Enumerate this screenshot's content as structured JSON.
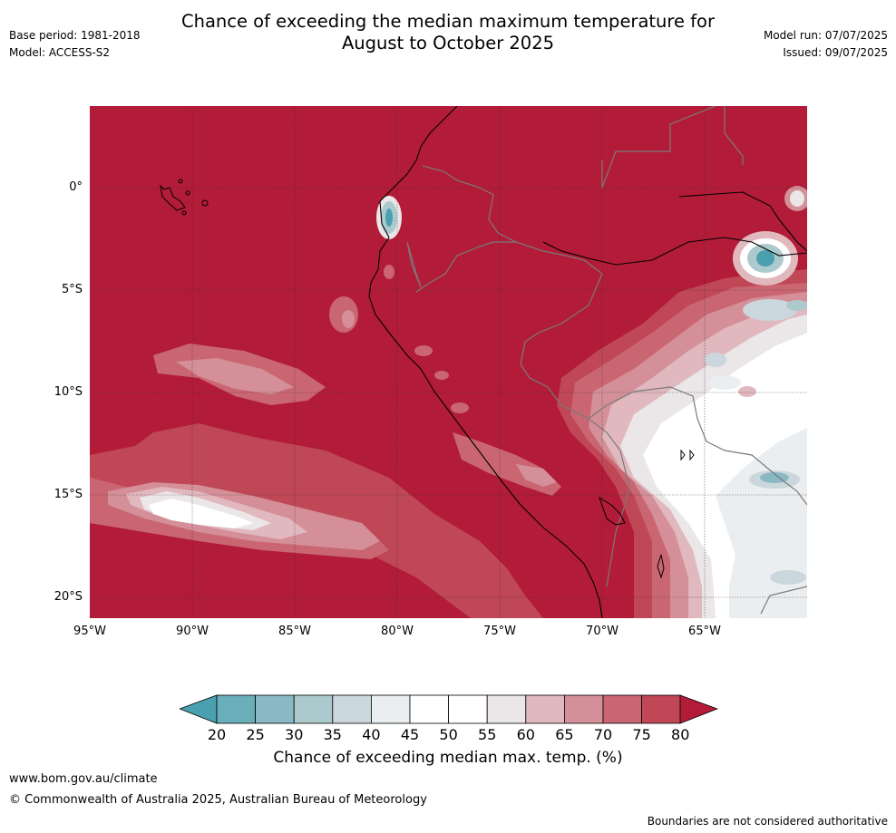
{
  "header": {
    "title_line1": "Chance of exceeding the median maximum temperature for",
    "title_line2": "August to October 2025",
    "base_period": "Base period: 1981-2018",
    "model": "Model: ACCESS-S2",
    "model_run": "Model run: 07/07/2025",
    "issued": "Issued: 09/07/2025"
  },
  "map": {
    "lat_labels": [
      "0°",
      "5°S",
      "10°S",
      "15°S",
      "20°S"
    ],
    "lon_labels": [
      "95°W",
      "90°W",
      "85°W",
      "80°W",
      "75°W",
      "70°W",
      "65°W"
    ],
    "background_category": "80+",
    "land_outline_color": "#000000",
    "border_color": "#7a7a7a"
  },
  "colorbar": {
    "title": "Chance of exceeding median max. temp. (%)",
    "ticks": [
      "20",
      "25",
      "30",
      "35",
      "40",
      "45",
      "50",
      "55",
      "60",
      "65",
      "70",
      "75",
      "80"
    ],
    "colors": [
      "#4aa0ae",
      "#6aaeb9",
      "#8ab8c4",
      "#acc9cd",
      "#cad7dc",
      "#eaeef0",
      "#ffffff",
      "#ffffff",
      "#ebe6e7",
      "#e0b8be",
      "#d48f98",
      "#c96671",
      "#bf4756",
      "#b21c38"
    ]
  },
  "footer": {
    "url": "www.bom.gov.au/climate",
    "copyright": "© Commonwealth of Australia 2025, Australian Bureau of Meteorology",
    "disclaimer": "Boundaries are not considered authoritative"
  }
}
